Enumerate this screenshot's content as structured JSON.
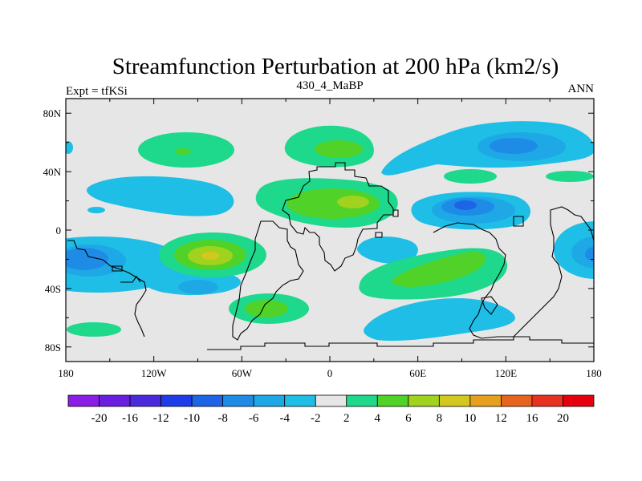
{
  "chart_data": {
    "type": "heatmap",
    "subtype": "filled-contour-map",
    "title": "Streamfunction Perturbation at 200 hPa (km2/s)",
    "left_string": "Expt = tfKSi",
    "center_string": "430_4_MaBP",
    "right_string": "ANN",
    "x_ticks": [
      {
        "value": -180,
        "label": "180"
      },
      {
        "value": -120,
        "label": "120W"
      },
      {
        "value": -60,
        "label": "60W"
      },
      {
        "value": 0,
        "label": "0"
      },
      {
        "value": 60,
        "label": "60E"
      },
      {
        "value": 120,
        "label": "120E"
      },
      {
        "value": 180,
        "label": "180"
      }
    ],
    "y_ticks": [
      {
        "value": 80,
        "label": "80N"
      },
      {
        "value": 40,
        "label": "40N"
      },
      {
        "value": 0,
        "label": "0"
      },
      {
        "value": -40,
        "label": "40S"
      },
      {
        "value": -80,
        "label": "80S"
      }
    ],
    "xlim": [
      -180,
      180
    ],
    "ylim": [
      -90,
      90
    ],
    "colorbar": {
      "levels": [
        "-20",
        "-16",
        "-12",
        "-10",
        "-8",
        "-6",
        "-4",
        "-2",
        "2",
        "4",
        "6",
        "8",
        "10",
        "12",
        "16",
        "20"
      ],
      "colors": [
        "#8a1ee6",
        "#6a1ee0",
        "#4a28dc",
        "#1e3ce8",
        "#1e64e6",
        "#1e8ce6",
        "#1ea8e6",
        "#1ebee6",
        "#e6e6e6",
        "#1ed88c",
        "#50d228",
        "#a0d21e",
        "#d2c81e",
        "#e6a01e",
        "#e6641e",
        "#e6321e",
        "#e6000e"
      ]
    },
    "features": [
      {
        "lon": -165,
        "lat": -22,
        "level": -8
      },
      {
        "lon": -150,
        "lat": -22,
        "level": -4
      },
      {
        "lon": -140,
        "lat": -40,
        "level": -6
      },
      {
        "lon": -125,
        "lat": -37,
        "level": -2
      },
      {
        "lon": -130,
        "lat": 28,
        "level": -2
      },
      {
        "lon": -155,
        "lat": 13,
        "level": -2
      },
      {
        "lon": -100,
        "lat": 55,
        "level": 2
      },
      {
        "lon": -98,
        "lat": 53,
        "level": 6
      },
      {
        "lon": -83,
        "lat": -18,
        "level": 6
      },
      {
        "lon": -83,
        "lat": -18,
        "level": 8
      },
      {
        "lon": -40,
        "lat": -54,
        "level": 4
      },
      {
        "lon": -155,
        "lat": -70,
        "level": 2
      },
      {
        "lon": 10,
        "lat": 57,
        "level": 4
      },
      {
        "lon": 15,
        "lat": 20,
        "level": 6
      },
      {
        "lon": 20,
        "lat": 18,
        "level": 8
      },
      {
        "lon": 68,
        "lat": -32,
        "level": 6
      },
      {
        "lon": 100,
        "lat": 15,
        "level": -8
      },
      {
        "lon": 120,
        "lat": 58,
        "level": -6
      },
      {
        "lon": 85,
        "lat": -65,
        "level": -2
      },
      {
        "lon": 40,
        "lat": -22,
        "level": -2
      },
      {
        "lon": 170,
        "lat": -17,
        "level": -6
      },
      {
        "lon": 90,
        "lat": 37,
        "level": 2
      }
    ]
  }
}
